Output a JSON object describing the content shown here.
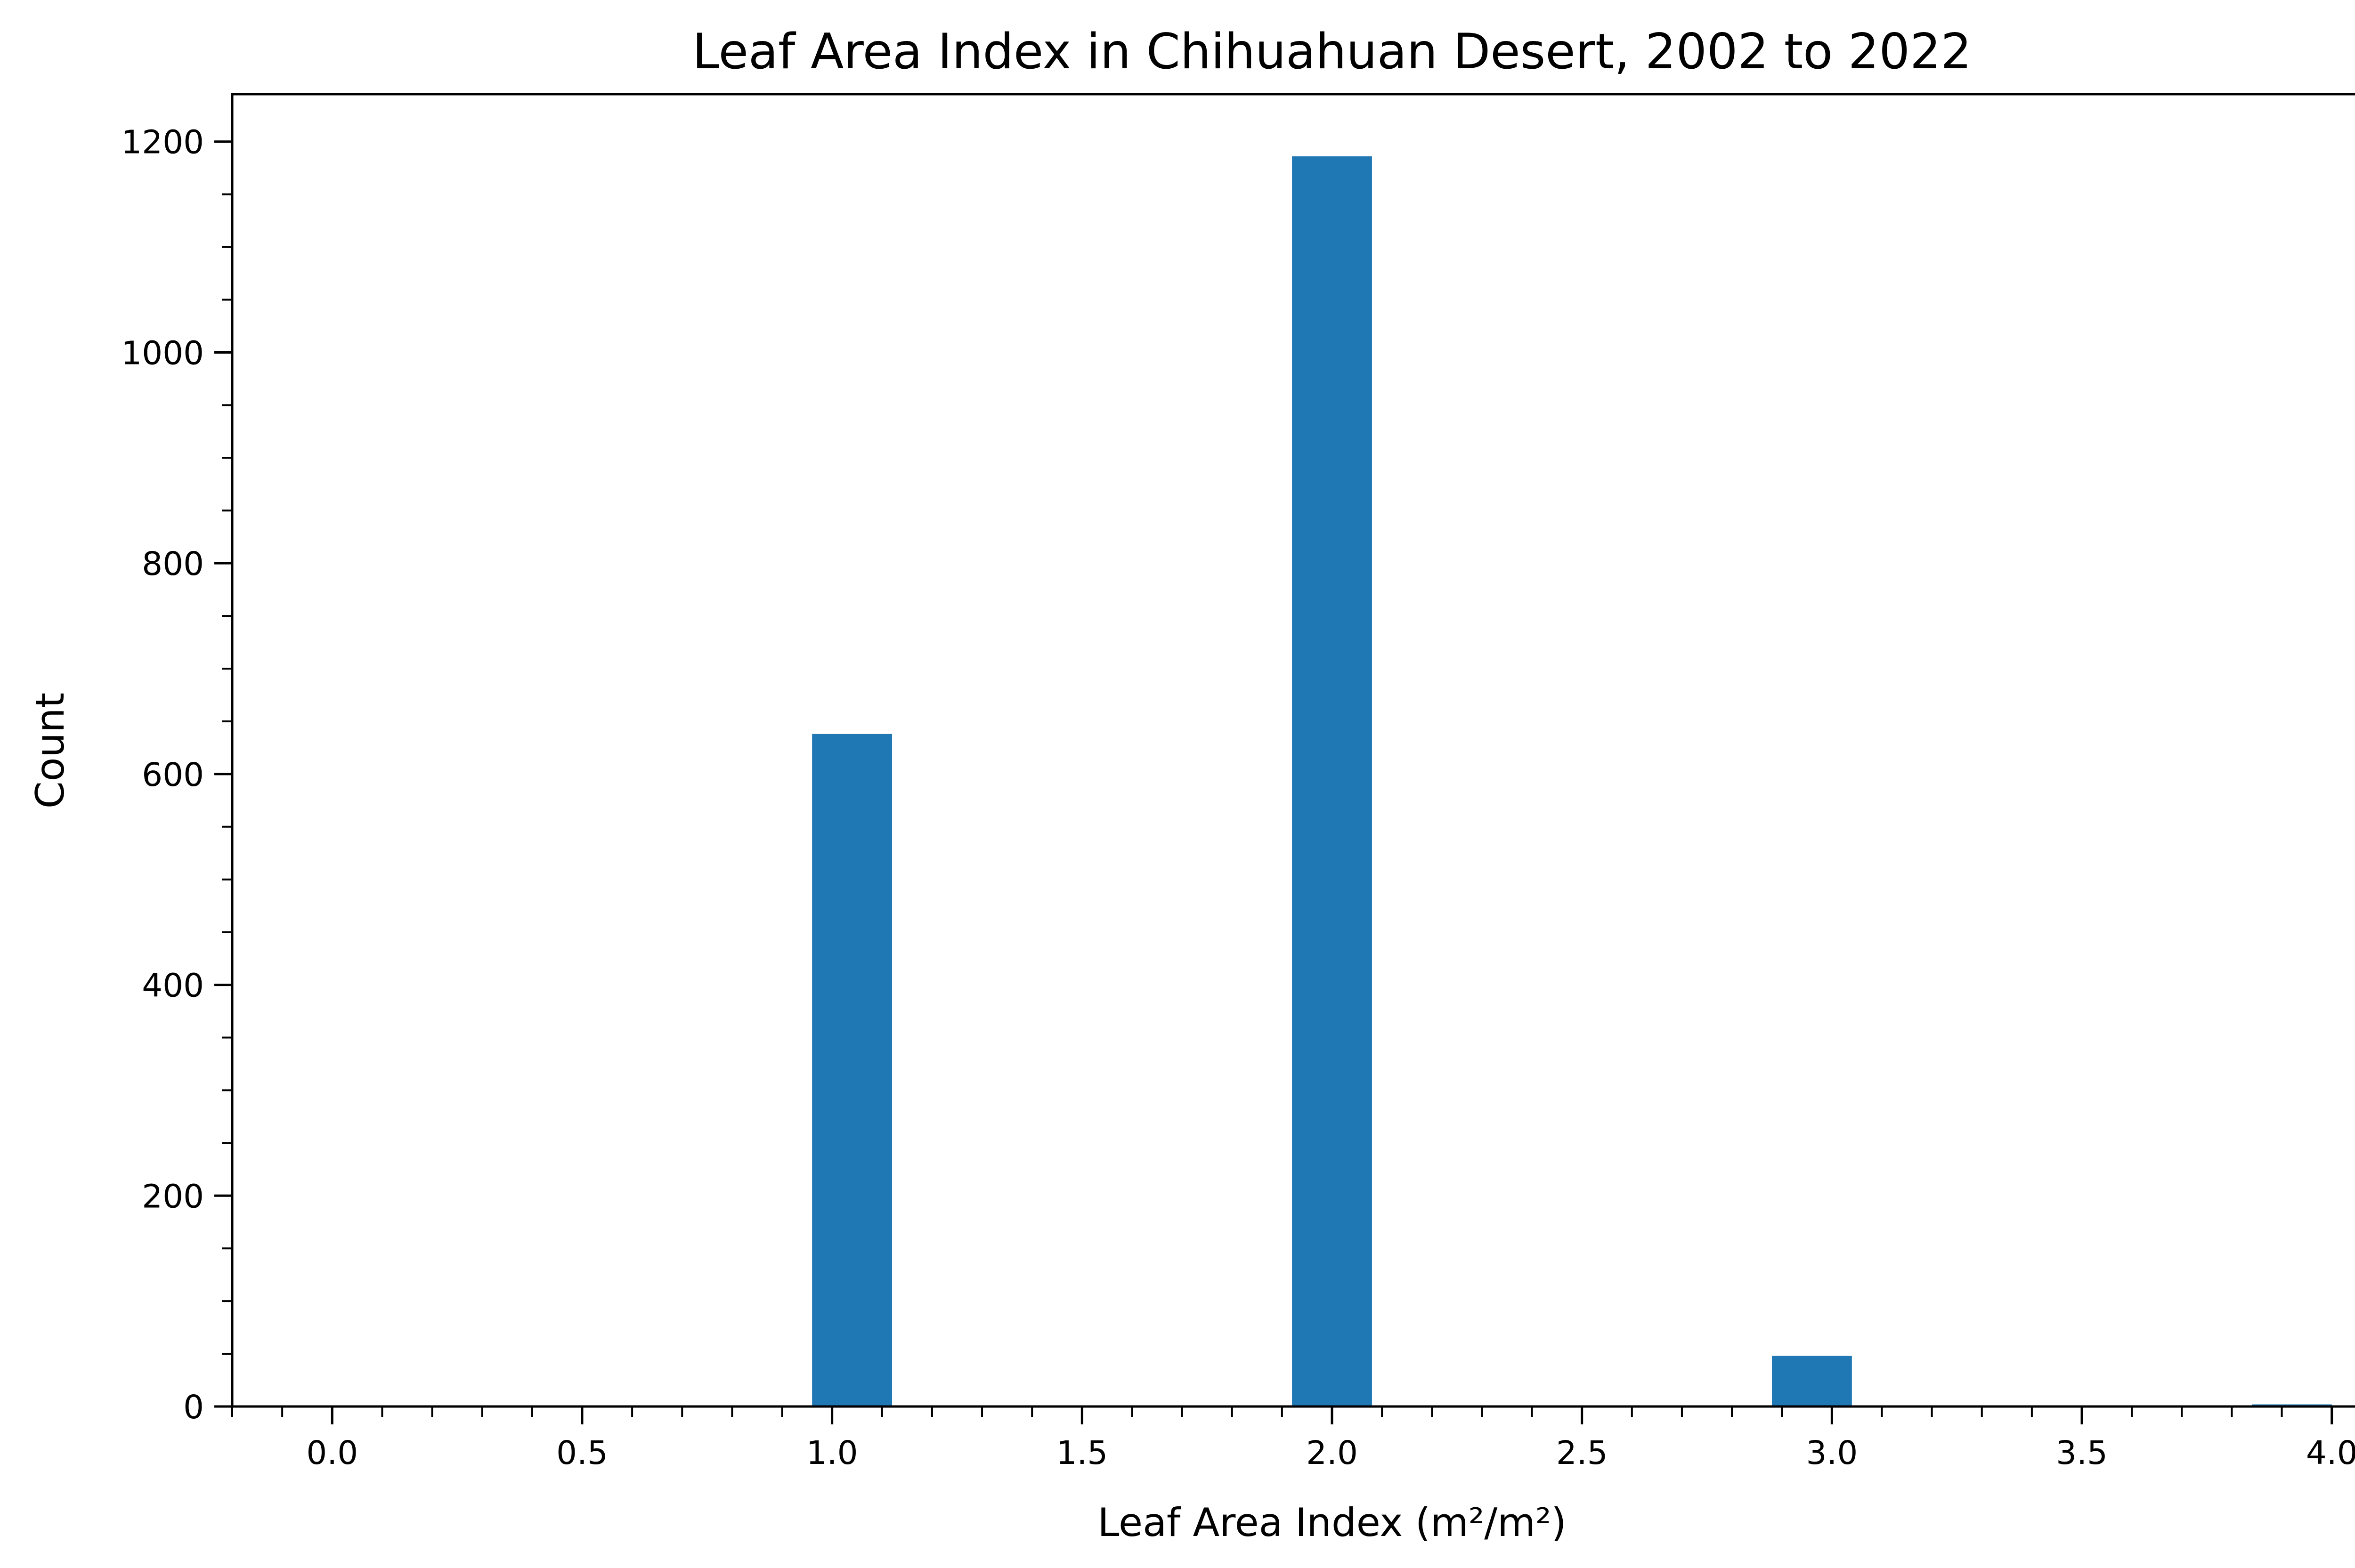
{
  "chart_data": {
    "type": "bar",
    "title": "Leaf Area Index in Chihuahuan Desert, 2002 to 2022",
    "xlabel": "Leaf Area Index (m²/m²)",
    "ylabel": "Count",
    "xlim": [
      -0.2,
      4.2
    ],
    "ylim": [
      0,
      1245
    ],
    "x_ticks": [
      "0.0",
      "0.5",
      "1.0",
      "1.5",
      "2.0",
      "2.5",
      "3.0",
      "3.5",
      "4.0"
    ],
    "y_ticks": [
      "0",
      "200",
      "400",
      "600",
      "800",
      "1000",
      "1200"
    ],
    "grid": false,
    "bar_color": "#1f77b4",
    "bins": [
      {
        "start": 0.96,
        "end": 1.12,
        "count": 638
      },
      {
        "start": 1.92,
        "end": 2.08,
        "count": 1186
      },
      {
        "start": 2.88,
        "end": 3.04,
        "count": 48
      },
      {
        "start": 3.84,
        "end": 4.0,
        "count": 2
      }
    ]
  }
}
